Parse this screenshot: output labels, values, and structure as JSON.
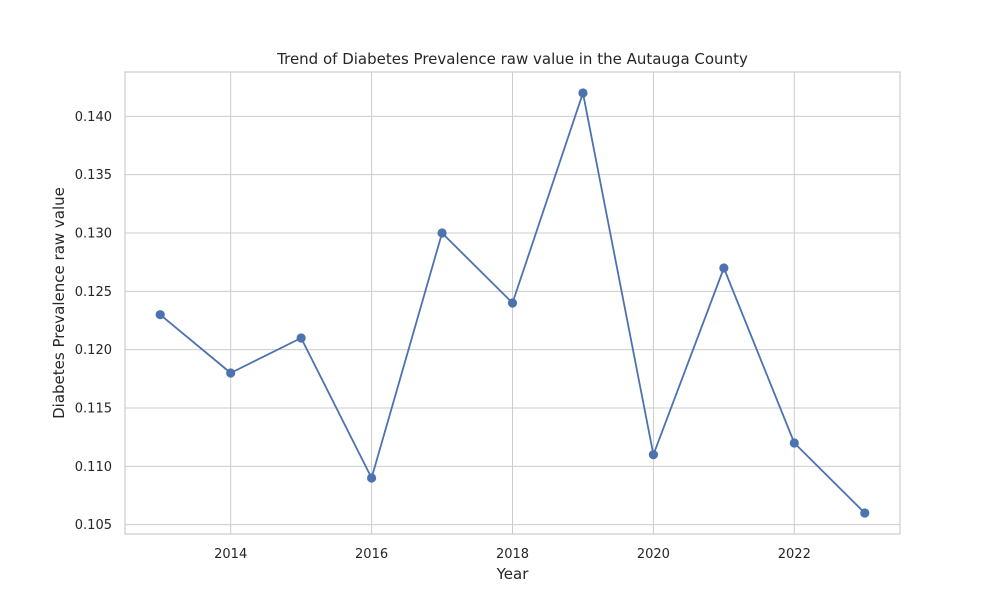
{
  "chart_data": {
    "type": "line",
    "title": "Trend of Diabetes Prevalence raw value in the Autauga County",
    "xlabel": "Year",
    "ylabel": "Diabetes Prevalence raw value",
    "x": [
      2013,
      2014,
      2015,
      2016,
      2017,
      2018,
      2019,
      2020,
      2021,
      2022,
      2023
    ],
    "series": [
      {
        "values": [
          0.123,
          0.118,
          0.121,
          0.109,
          0.13,
          0.124,
          0.142,
          0.111,
          0.127,
          0.112,
          0.106
        ]
      }
    ],
    "xlim": [
      2012.5,
      2023.5
    ],
    "ylim": [
      0.1042,
      0.1438
    ],
    "xticks": [
      2014,
      2016,
      2018,
      2020,
      2022
    ],
    "xtick_labels": [
      "2014",
      "2016",
      "2018",
      "2020",
      "2022"
    ],
    "yticks": [
      0.105,
      0.11,
      0.115,
      0.12,
      0.125,
      0.13,
      0.135,
      0.14
    ],
    "ytick_labels": [
      "0.105",
      "0.110",
      "0.115",
      "0.120",
      "0.125",
      "0.130",
      "0.135",
      "0.140"
    ],
    "grid": true,
    "line_color": "#4c72b0",
    "marker": "circle"
  }
}
